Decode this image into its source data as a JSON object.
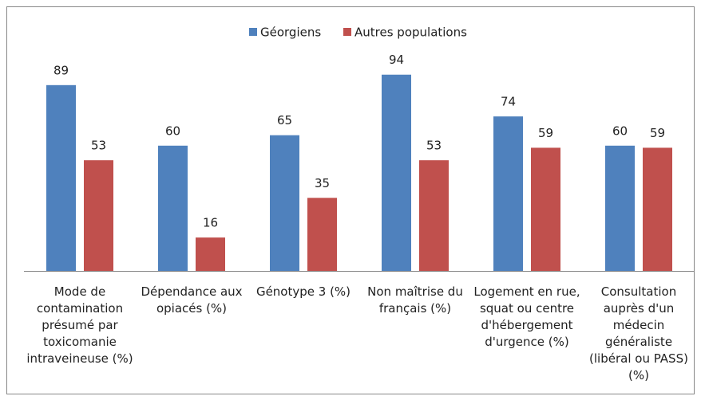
{
  "chart_data": {
    "type": "bar",
    "categories": [
      "Mode de contamination présumé par toxicomanie intraveineuse (%)",
      "Dépendance aux opiacés (%)",
      "Génotype 3 (%)",
      "Non maîtrise du français (%)",
      "Logement en rue, squat ou centre d'hébergement d'urgence (%)",
      "Consultation auprès d'un médecin généraliste (libéral ou PASS) (%)"
    ],
    "series": [
      {
        "name": "Géorgiens",
        "color": "#4f81bd",
        "values": [
          89,
          60,
          65,
          94,
          74,
          60
        ]
      },
      {
        "name": "Autres populations",
        "color": "#c0504d",
        "values": [
          53,
          16,
          35,
          53,
          59,
          59
        ]
      }
    ],
    "ylim": [
      0,
      100
    ],
    "legend": "top"
  }
}
